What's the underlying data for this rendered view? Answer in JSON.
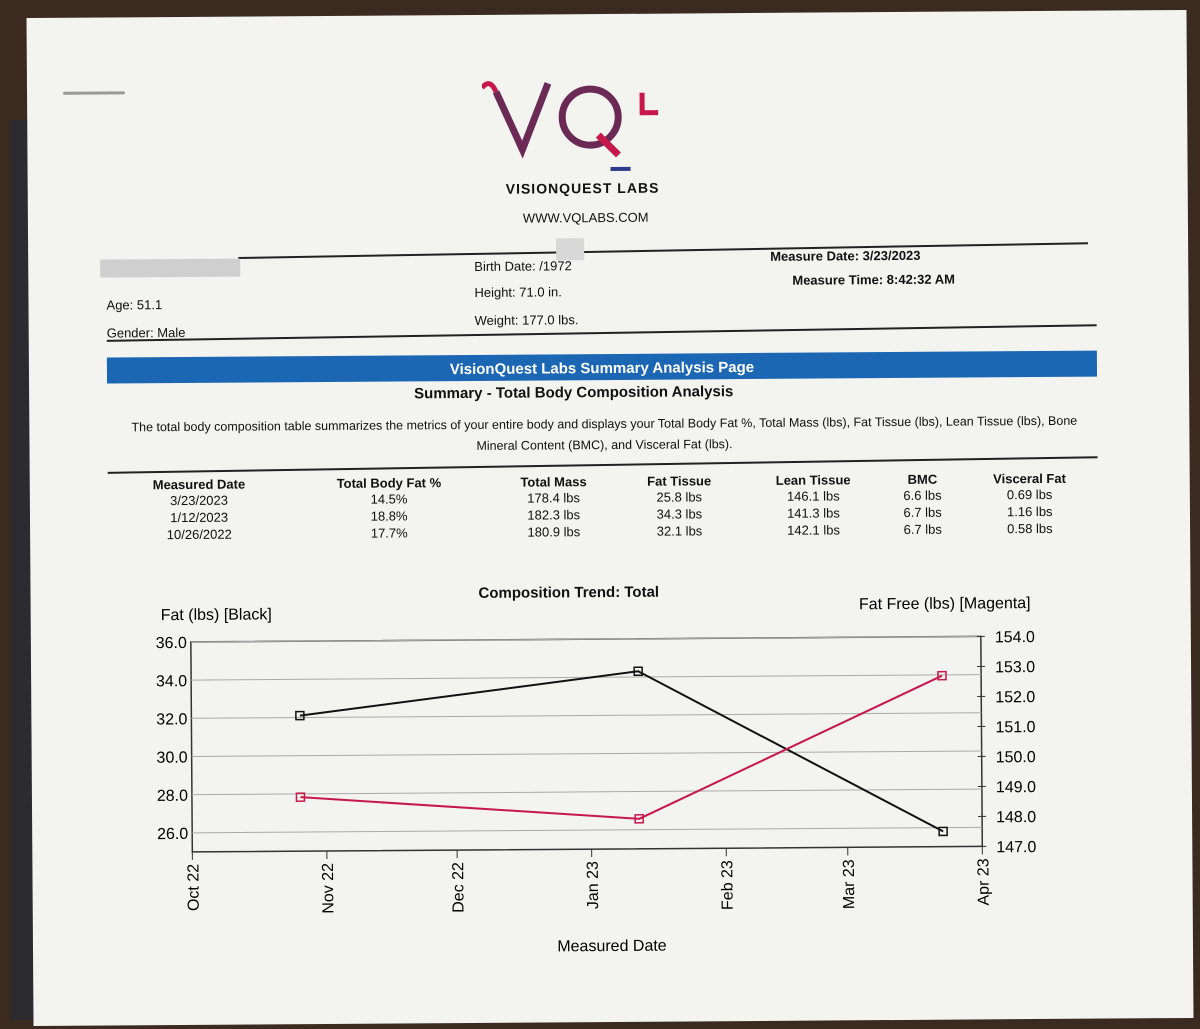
{
  "header": {
    "brand": "VISIONQUEST LABS",
    "logo_text": "VQL",
    "url": "WWW.VQLABS.COM"
  },
  "patient": {
    "age": "Age: 51.1",
    "gender": "Gender: Male",
    "birth_date": "Birth Date:      /1972",
    "height": "Height: 71.0 in.",
    "weight": "Weight: 177.0 lbs.",
    "measure_date": "Measure Date: 3/23/2023",
    "measure_time": "Measure Time: 8:42:32 AM"
  },
  "banner": "VisionQuest Labs Summary Analysis Page",
  "section_title": "Summary - Total Body Composition Analysis",
  "description": "The total body composition table summarizes the metrics of your entire body and displays your Total Body Fat %, Total Mass (lbs), Fat Tissue (lbs), Lean Tissue (lbs), Bone Mineral Content (BMC), and Visceral Fat (lbs).",
  "table": {
    "columns": [
      "Measured Date",
      "Total Body Fat %",
      "Total Mass",
      "Fat Tissue",
      "Lean Tissue",
      "BMC",
      "Visceral Fat"
    ],
    "rows": [
      [
        "3/23/2023",
        "14.5%",
        "178.4 lbs",
        "25.8 lbs",
        "146.1 lbs",
        "6.6 lbs",
        "0.69 lbs"
      ],
      [
        "1/12/2023",
        "18.8%",
        "182.3 lbs",
        "34.3 lbs",
        "141.3 lbs",
        "6.7 lbs",
        "1.16 lbs"
      ],
      [
        "10/26/2022",
        "17.7%",
        "180.9 lbs",
        "32.1 lbs",
        "142.1 lbs",
        "6.7 lbs",
        "0.58 lbs"
      ]
    ]
  },
  "chart_data": {
    "type": "line",
    "title": "Composition Trend: Total",
    "xlabel": "Measured Date",
    "ylabel_left": "Fat (lbs) [Black]",
    "ylabel_right": "Fat Free (lbs) [Magenta]",
    "x_ticks": [
      "Oct 22",
      "Nov 22",
      "Dec 22",
      "Jan 23",
      "Feb 23",
      "Mar 23",
      "Apr 23"
    ],
    "x_tick_dates": [
      "2022-10-01",
      "2022-11-01",
      "2022-12-01",
      "2023-01-01",
      "2023-02-01",
      "2023-03-01",
      "2023-04-01"
    ],
    "y_left_ticks": [
      "26.0",
      "28.0",
      "30.0",
      "32.0",
      "34.0",
      "36.0"
    ],
    "y_right_ticks": [
      "147.0",
      "148.0",
      "149.0",
      "150.0",
      "151.0",
      "152.0",
      "153.0",
      "154.0"
    ],
    "ylim_left": [
      25,
      36
    ],
    "ylim_right": [
      147,
      154
    ],
    "grid": true,
    "series": [
      {
        "name": "Fat (lbs) [Black]",
        "axis": "left",
        "color": "#111111",
        "x": [
          "2022-10-26",
          "2023-01-12",
          "2023-03-23"
        ],
        "values": [
          32.1,
          34.3,
          25.8
        ]
      },
      {
        "name": "Fat Free (lbs) [Magenta]",
        "axis": "right",
        "color": "#c8174a",
        "x": [
          "2022-10-26",
          "2023-01-12",
          "2023-03-23"
        ],
        "values": [
          148.8,
          148.0,
          152.7
        ]
      }
    ]
  }
}
